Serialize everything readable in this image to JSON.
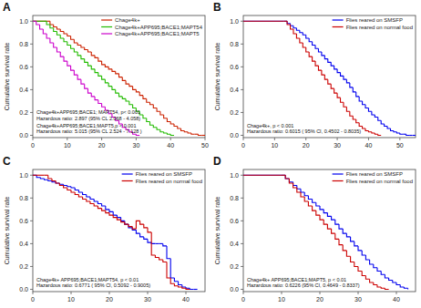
{
  "chart_data": [
    {
      "type": "step",
      "title": "A",
      "y_label": "Cumulative survival rate",
      "xlim": [
        0,
        50
      ],
      "ylim": [
        -0.02,
        1.05
      ],
      "xticks": [
        0,
        10,
        20,
        30,
        40,
        50
      ],
      "yticks": [
        {
          "value": 0.0,
          "label": "0.0"
        },
        0.2,
        0.4,
        0.6,
        0.8,
        {
          "value": 1.0,
          "label": "1.0"
        }
      ],
      "legend": "upper right",
      "annotations": [
        "Chage4k+APP695;BACE1; MAPT54, p< 0.001\nHazardous ratio: 2.897 (95% CL 2.068 - 4.058)",
        "Chage4k+APP695;BACE1;MAPT5,p < 0.001\nHazardous ratio: 5.015 (95% CL 2.524 - 7.128 )"
      ],
      "series": [
        {
          "name": "Chage4k+",
          "color": "#cc2200",
          "x": [
            0,
            4,
            5,
            6,
            7,
            8,
            9,
            10,
            11,
            12,
            13,
            14,
            15,
            16,
            17,
            18,
            19,
            20,
            21,
            22,
            23,
            24,
            25,
            26,
            27,
            28,
            29,
            30,
            31,
            32,
            33,
            34,
            35,
            36,
            37,
            38,
            39,
            40,
            41,
            42,
            43,
            44,
            45,
            46,
            47,
            48,
            49,
            50
          ],
          "values": [
            1.0,
            1.0,
            0.97,
            0.95,
            0.93,
            0.91,
            0.89,
            0.87,
            0.84,
            0.81,
            0.79,
            0.77,
            0.75,
            0.73,
            0.7,
            0.68,
            0.65,
            0.62,
            0.6,
            0.58,
            0.56,
            0.54,
            0.51,
            0.48,
            0.45,
            0.43,
            0.4,
            0.38,
            0.35,
            0.32,
            0.29,
            0.27,
            0.24,
            0.21,
            0.18,
            0.15,
            0.12,
            0.1,
            0.08,
            0.06,
            0.04,
            0.03,
            0.02,
            0.01,
            0.01,
            0.0,
            0.0,
            0.0
          ]
        },
        {
          "name": "Chage4k+APP695;BACE1;MAPT54",
          "color": "#22bb00",
          "x": [
            0,
            3,
            4,
            5,
            6,
            7,
            8,
            9,
            10,
            11,
            12,
            13,
            14,
            15,
            16,
            17,
            18,
            19,
            20,
            21,
            22,
            23,
            24,
            25,
            26,
            27,
            28,
            29,
            30,
            31,
            32,
            33,
            34,
            35,
            36,
            37,
            38,
            39,
            40,
            41
          ],
          "values": [
            1.0,
            1.0,
            0.97,
            0.94,
            0.91,
            0.88,
            0.85,
            0.82,
            0.79,
            0.76,
            0.73,
            0.7,
            0.67,
            0.64,
            0.61,
            0.58,
            0.55,
            0.52,
            0.49,
            0.46,
            0.43,
            0.4,
            0.37,
            0.34,
            0.32,
            0.3,
            0.27,
            0.24,
            0.21,
            0.18,
            0.15,
            0.12,
            0.09,
            0.07,
            0.05,
            0.03,
            0.02,
            0.01,
            0.0,
            0.0
          ]
        },
        {
          "name": "Chage4k+APP695;BACE1;MAPT5",
          "color": "#cc00cc",
          "x": [
            0,
            1,
            2,
            3,
            4,
            5,
            6,
            7,
            8,
            9,
            10,
            11,
            12,
            13,
            14,
            15,
            16,
            17,
            18,
            19,
            20,
            21,
            22,
            23,
            24,
            25,
            26,
            27,
            28,
            29,
            30,
            31
          ],
          "values": [
            1.0,
            0.97,
            0.93,
            0.89,
            0.85,
            0.81,
            0.77,
            0.73,
            0.69,
            0.65,
            0.61,
            0.57,
            0.53,
            0.49,
            0.45,
            0.41,
            0.37,
            0.34,
            0.31,
            0.28,
            0.25,
            0.22,
            0.19,
            0.16,
            0.13,
            0.1,
            0.07,
            0.05,
            0.03,
            0.01,
            0.0,
            0.0
          ]
        }
      ]
    },
    {
      "type": "step",
      "title": "B",
      "y_label": "Cumulative survival rate",
      "xlim": [
        0,
        55
      ],
      "ylim": [
        -0.02,
        1.05
      ],
      "xticks": [
        0,
        10,
        20,
        30,
        40,
        50
      ],
      "yticks": [
        {
          "value": 0.0,
          "label": "0.0"
        },
        0.2,
        0.4,
        0.6,
        0.8,
        {
          "value": 1.0,
          "label": "1.0"
        }
      ],
      "legend": "upper right",
      "annotations": [
        "Chage4k+, p < 0.001\nHazardous ratio: 0.6015 ( 95% CI, 0.4502 - 0.8035)"
      ],
      "series": [
        {
          "name": "Flies reared on SMSFP",
          "color": "#0000ee",
          "x": [
            0,
            13,
            14,
            15,
            16,
            17,
            18,
            19,
            20,
            21,
            22,
            23,
            24,
            25,
            26,
            27,
            28,
            29,
            30,
            31,
            32,
            33,
            34,
            35,
            36,
            37,
            38,
            39,
            40,
            41,
            42,
            43,
            44,
            45,
            46,
            47,
            48,
            49,
            50,
            51,
            52,
            53,
            54,
            55
          ],
          "values": [
            1.0,
            1.0,
            0.98,
            0.96,
            0.94,
            0.92,
            0.9,
            0.88,
            0.85,
            0.82,
            0.79,
            0.76,
            0.73,
            0.7,
            0.67,
            0.64,
            0.61,
            0.58,
            0.55,
            0.52,
            0.49,
            0.46,
            0.42,
            0.38,
            0.34,
            0.3,
            0.27,
            0.24,
            0.21,
            0.18,
            0.16,
            0.13,
            0.1,
            0.08,
            0.06,
            0.04,
            0.03,
            0.02,
            0.01,
            0.01,
            0.0,
            0.0,
            0.0,
            0.0
          ]
        },
        {
          "name": "Flies reared on normal food",
          "color": "#cc0000",
          "x": [
            0,
            13,
            14,
            15,
            16,
            17,
            18,
            19,
            20,
            21,
            22,
            23,
            24,
            25,
            26,
            27,
            28,
            29,
            30,
            31,
            32,
            33,
            34,
            35,
            36,
            37,
            38,
            39,
            40,
            41,
            42,
            43,
            44
          ],
          "values": [
            1.0,
            1.0,
            0.97,
            0.93,
            0.89,
            0.85,
            0.81,
            0.77,
            0.73,
            0.69,
            0.65,
            0.61,
            0.57,
            0.53,
            0.49,
            0.45,
            0.41,
            0.37,
            0.33,
            0.29,
            0.25,
            0.21,
            0.17,
            0.14,
            0.11,
            0.08,
            0.06,
            0.04,
            0.03,
            0.02,
            0.01,
            0.0,
            0.0
          ]
        }
      ]
    },
    {
      "type": "step",
      "title": "C",
      "y_label": "Cumulative survival rate",
      "xlim": [
        0,
        45
      ],
      "ylim": [
        -0.02,
        1.05
      ],
      "xticks": [
        0,
        10,
        20,
        30,
        40
      ],
      "yticks": [
        {
          "value": 0.0,
          "label": "0.0"
        },
        0.2,
        0.4,
        0.6,
        0.8,
        {
          "value": 1.0,
          "label": "1.0"
        }
      ],
      "legend": "upper right",
      "annotations": [
        "Chage4k+ APP695;BACE1;MAPT54, p < 0.01\nHazardous ratio: 0.6771 ( 95% CI, 0.5092 - 0.9005)"
      ],
      "series": [
        {
          "name": "Flies reared on SMSFP",
          "color": "#0000ee",
          "x": [
            0,
            1,
            2,
            3,
            4,
            5,
            6,
            7,
            8,
            9,
            10,
            11,
            12,
            13,
            14,
            15,
            16,
            17,
            18,
            19,
            20,
            21,
            22,
            23,
            24,
            25,
            26,
            27,
            28,
            29,
            30,
            31,
            32,
            33,
            34,
            35,
            36,
            37,
            38,
            39,
            40,
            41,
            42,
            43
          ],
          "values": [
            1.0,
            0.98,
            0.97,
            0.96,
            0.95,
            0.94,
            0.93,
            0.92,
            0.91,
            0.9,
            0.89,
            0.87,
            0.85,
            0.83,
            0.81,
            0.79,
            0.77,
            0.75,
            0.73,
            0.7,
            0.68,
            0.65,
            0.63,
            0.6,
            0.57,
            0.54,
            0.52,
            0.49,
            0.46,
            0.44,
            0.41,
            0.4,
            0.4,
            0.4,
            0.38,
            0.27,
            0.1,
            0.07,
            0.04,
            0.02,
            0.01,
            0.0,
            0.0,
            0.0
          ]
        },
        {
          "name": "Flies reared on normal food",
          "color": "#cc0000",
          "x": [
            0,
            3,
            4,
            5,
            6,
            7,
            8,
            9,
            10,
            11,
            12,
            13,
            14,
            15,
            16,
            17,
            18,
            19,
            20,
            21,
            22,
            23,
            24,
            25,
            26,
            27,
            28,
            29,
            30,
            31,
            32,
            33,
            34,
            35,
            36,
            37,
            38,
            39,
            40,
            41
          ],
          "values": [
            1.0,
            1.0,
            0.97,
            0.95,
            0.93,
            0.91,
            0.89,
            0.87,
            0.85,
            0.83,
            0.81,
            0.79,
            0.77,
            0.75,
            0.73,
            0.71,
            0.69,
            0.67,
            0.65,
            0.63,
            0.61,
            0.59,
            0.57,
            0.55,
            0.53,
            0.6,
            0.57,
            0.54,
            0.5,
            0.3,
            0.28,
            0.26,
            0.24,
            0.1,
            0.05,
            0.03,
            0.02,
            0.01,
            0.0,
            0.0
          ]
        }
      ]
    },
    {
      "type": "step",
      "title": "D",
      "y_label": "Cumulative survival rate",
      "xlim": [
        0,
        45
      ],
      "ylim": [
        -0.02,
        1.05
      ],
      "xticks": [
        0,
        10,
        20,
        30,
        40
      ],
      "yticks": [
        {
          "value": 0.0,
          "label": "0.0"
        },
        0.2,
        0.4,
        0.6,
        0.8,
        {
          "value": 1.0,
          "label": "1.0"
        }
      ],
      "legend": "upper right",
      "annotations": [
        "Chage4k+ APP695;BACE1;MAPT5, p < 0.01\nHazardous ratio: 0.6226 (95% CI, 0.4649 - 0.8337)"
      ],
      "series": [
        {
          "name": "Flies reared on SMSFP",
          "color": "#0000ee",
          "x": [
            0,
            10,
            11,
            12,
            13,
            14,
            15,
            16,
            17,
            18,
            19,
            20,
            21,
            22,
            23,
            24,
            25,
            26,
            27,
            28,
            29,
            30,
            31,
            32,
            33,
            34,
            35,
            36,
            37,
            38,
            39,
            40,
            41,
            42,
            43
          ],
          "values": [
            1.0,
            1.0,
            0.97,
            0.94,
            0.91,
            0.88,
            0.85,
            0.82,
            0.79,
            0.76,
            0.73,
            0.7,
            0.67,
            0.64,
            0.61,
            0.57,
            0.53,
            0.49,
            0.46,
            0.42,
            0.38,
            0.34,
            0.3,
            0.26,
            0.22,
            0.19,
            0.16,
            0.13,
            0.1,
            0.08,
            0.06,
            0.04,
            0.02,
            0.01,
            0.0
          ]
        },
        {
          "name": "Flies reared on normal food",
          "color": "#cc0000",
          "x": [
            0,
            10,
            11,
            12,
            13,
            14,
            15,
            16,
            17,
            18,
            19,
            20,
            21,
            22,
            23,
            24,
            25,
            26,
            27,
            28,
            29,
            30,
            31,
            32,
            33,
            34,
            35,
            36,
            37,
            38
          ],
          "values": [
            1.0,
            1.0,
            0.97,
            0.93,
            0.89,
            0.85,
            0.81,
            0.77,
            0.73,
            0.69,
            0.65,
            0.61,
            0.57,
            0.53,
            0.49,
            0.44,
            0.39,
            0.34,
            0.29,
            0.24,
            0.2,
            0.16,
            0.12,
            0.09,
            0.06,
            0.04,
            0.02,
            0.01,
            0.0,
            0.0
          ]
        }
      ]
    }
  ]
}
